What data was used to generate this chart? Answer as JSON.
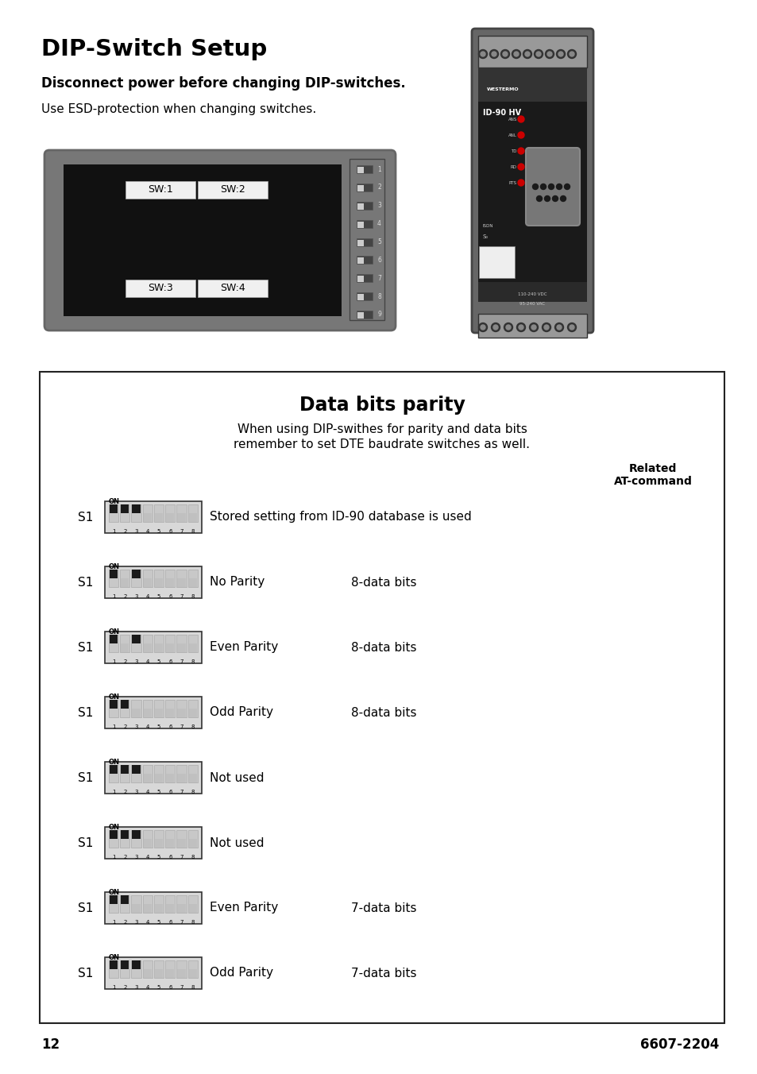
{
  "title": "DIP-Switch Setup",
  "subtitle_bold": "Disconnect power before changing DIP-switches.",
  "subtitle_normal": "Use ESD-protection when changing switches.",
  "box_title": "Data bits parity",
  "box_subtitle1": "When using DIP-swithes for parity and data bits",
  "box_subtitle2": "remember to set DTE baudrate switches as well.",
  "related_line1": "Related",
  "related_line2": "AT-command",
  "page_number": "12",
  "product_code": "6607-2204",
  "rows": [
    {
      "switches_on": [
        1,
        2,
        3
      ],
      "label1": "Stored setting from ID-90 database is used",
      "label2": ""
    },
    {
      "switches_on": [
        1,
        3
      ],
      "label1": "No Parity",
      "label2": "8-data bits"
    },
    {
      "switches_on": [
        1,
        3
      ],
      "label1": "Even Parity",
      "label2": "8-data bits"
    },
    {
      "switches_on": [
        1,
        2
      ],
      "label1": "Odd Parity",
      "label2": "8-data bits"
    },
    {
      "switches_on": [
        1,
        2,
        3
      ],
      "label1": "Not used",
      "label2": ""
    },
    {
      "switches_on": [
        1,
        2,
        3
      ],
      "label1": "Not used",
      "label2": ""
    },
    {
      "switches_on": [
        1,
        2
      ],
      "label1": "Even Parity",
      "label2": "7-data bits"
    },
    {
      "switches_on": [
        1,
        2,
        3
      ],
      "label1": "Odd Parity",
      "label2": "7-data bits"
    }
  ],
  "bg_color": "#ffffff",
  "box_bg": "#ffffff",
  "box_border": "#222222"
}
